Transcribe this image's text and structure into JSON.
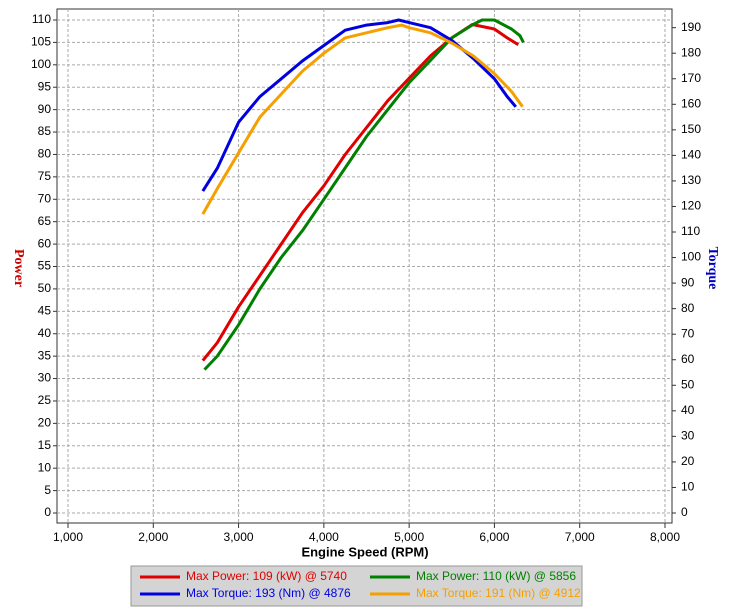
{
  "chart_data": {
    "type": "line",
    "xlabel": "Engine Speed (RPM)",
    "ylabel": "Power",
    "y2label": "Torque",
    "xlim": [
      1000,
      8000
    ],
    "ylim": [
      0,
      110
    ],
    "y2lim": [
      0,
      193
    ],
    "xticks": [
      {
        "value": 1000,
        "label": "1,000"
      },
      {
        "value": 2000,
        "label": "2,000"
      },
      {
        "value": 3000,
        "label": "3,000"
      },
      {
        "value": 4000,
        "label": "4,000"
      },
      {
        "value": 5000,
        "label": "5,000"
      },
      {
        "value": 6000,
        "label": "6,000"
      },
      {
        "value": 7000,
        "label": "7,000"
      },
      {
        "value": 8000,
        "label": "8,000"
      }
    ],
    "yticks": [
      0,
      5,
      10,
      15,
      20,
      25,
      30,
      35,
      40,
      45,
      50,
      55,
      60,
      65,
      70,
      75,
      80,
      85,
      90,
      95,
      100,
      105,
      110
    ],
    "y2ticks": [
      0,
      10,
      20,
      30,
      40,
      50,
      60,
      70,
      80,
      90,
      100,
      110,
      120,
      130,
      140,
      150,
      160,
      170,
      180,
      190
    ],
    "grid": true,
    "series": [
      {
        "name": "Max Power: 109 (kW) @ 5740",
        "color": "#e00000",
        "axis": "y",
        "x": [
          2580,
          2750,
          3000,
          3250,
          3500,
          3750,
          4000,
          4250,
          4500,
          4750,
          5000,
          5250,
          5500,
          5740,
          6000,
          6150,
          6280
        ],
        "values": [
          34,
          38,
          46,
          53,
          60,
          67,
          73,
          80,
          86,
          92,
          97,
          102,
          106,
          109,
          108,
          106,
          104.5
        ]
      },
      {
        "name": "Max Power: 110 (kW) @ 5856",
        "color": "#008000",
        "axis": "y",
        "x": [
          2600,
          2750,
          3000,
          3250,
          3500,
          3750,
          4000,
          4250,
          4500,
          4750,
          5000,
          5250,
          5500,
          5750,
          5856,
          6000,
          6200,
          6300,
          6340
        ],
        "values": [
          32,
          35,
          42,
          50,
          57,
          63,
          70,
          77,
          84,
          90,
          96,
          101,
          106,
          109,
          110,
          110,
          108,
          106.5,
          105
        ]
      },
      {
        "name": "Max Torque: 193 (Nm) @ 4876",
        "color": "#0000e0",
        "axis": "y2",
        "x": [
          2580,
          2750,
          3000,
          3250,
          3500,
          3750,
          4000,
          4250,
          4500,
          4750,
          4876,
          5000,
          5250,
          5500,
          5750,
          6000,
          6150,
          6250
        ],
        "values": [
          126,
          135,
          153,
          163,
          170,
          177,
          183,
          189,
          191,
          192,
          193,
          192,
          190,
          185,
          178,
          170,
          163,
          159
        ]
      },
      {
        "name": "Max Torque: 191 (Nm) @ 4912",
        "color": "#f5a000",
        "axis": "y2",
        "x": [
          2580,
          2750,
          3000,
          3250,
          3500,
          3750,
          4000,
          4250,
          4500,
          4750,
          4912,
          5000,
          5250,
          5500,
          5750,
          6000,
          6200,
          6330
        ],
        "values": [
          117,
          127,
          141,
          155,
          164,
          173,
          180,
          186,
          188,
          190,
          191,
          190,
          188,
          184,
          179,
          172,
          165,
          159
        ]
      }
    ]
  }
}
